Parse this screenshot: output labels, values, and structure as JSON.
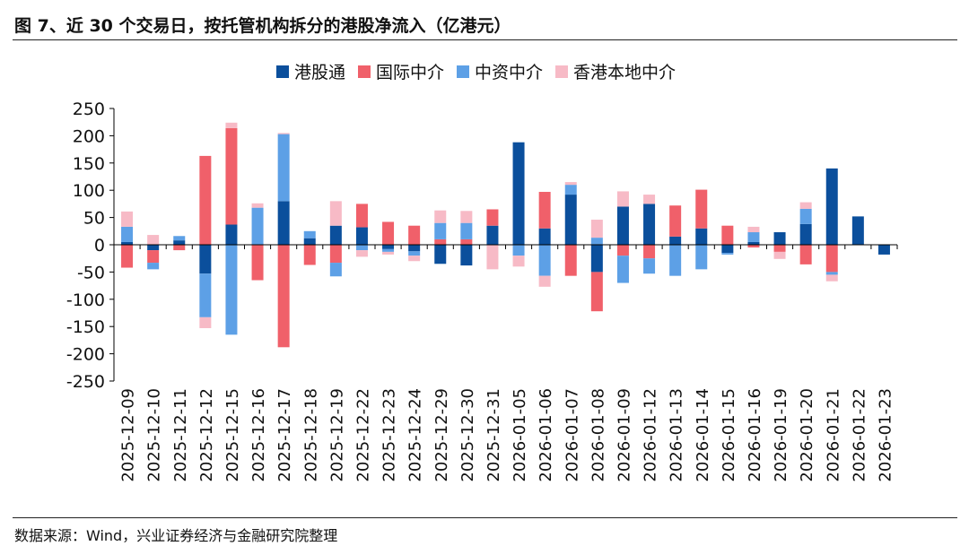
{
  "figure": {
    "title": "图 7、近 30 个交易日，按托管机构拆分的港股净流入（亿港元）",
    "source": "数据来源：Wind，兴业证券经济与金融研究院整理"
  },
  "colors": {
    "hk_connect": "#0B4F9C",
    "intl_broker": "#F0606A",
    "china_broker": "#5DA0E6",
    "hk_local_broker": "#F7BAC6",
    "axis": "#000000",
    "text": "#111111"
  },
  "chart_data": {
    "type": "bar",
    "stacked": true,
    "title": "图 7、近 30 个交易日，按托管机构拆分的港股净流入（亿港元）",
    "xlabel": "",
    "ylabel": "",
    "ylim": [
      -250,
      250
    ],
    "yticks": [
      250,
      200,
      150,
      100,
      50,
      0,
      -50,
      -100,
      -150,
      -200,
      -250
    ],
    "ytick_labels": [
      "250",
      "200",
      "150",
      "100",
      "50",
      "0",
      "-50",
      "-100",
      "-150",
      "-200",
      "-250"
    ],
    "grid": false,
    "legend_position": "top-center",
    "categories": [
      "2025-12-09",
      "2025-12-10",
      "2025-12-11",
      "2025-12-12",
      "2025-12-15",
      "2025-12-16",
      "2025-12-17",
      "2025-12-18",
      "2025-12-19",
      "2025-12-22",
      "2025-12-23",
      "2025-12-24",
      "2025-12-29",
      "2025-12-30",
      "2025-12-31",
      "2026-01-05",
      "2026-01-06",
      "2026-01-07",
      "2026-01-08",
      "2026-01-09",
      "2026-01-12",
      "2026-01-13",
      "2026-01-14",
      "2026-01-15",
      "2026-01-16",
      "2026-01-19",
      "2026-01-20",
      "2026-01-21",
      "2026-01-22",
      "2026-01-23"
    ],
    "series": [
      {
        "name": "港股通",
        "color_key": "hk_connect",
        "values": [
          5,
          -10,
          8,
          -53,
          37,
          0,
          80,
          12,
          35,
          32,
          -8,
          -12,
          -35,
          -38,
          35,
          188,
          30,
          92,
          -50,
          70,
          75,
          15,
          30,
          -15,
          5,
          23,
          38,
          140,
          52,
          -18
        ]
      },
      {
        "name": "国际中介",
        "color_key": "intl_broker",
        "values": [
          -42,
          -23,
          -10,
          163,
          177,
          -65,
          -188,
          -37,
          -33,
          43,
          42,
          35,
          10,
          10,
          30,
          0,
          67,
          -57,
          -72,
          -20,
          -25,
          57,
          71,
          35,
          -5,
          -13,
          -36,
          -50,
          0,
          0
        ]
      },
      {
        "name": "中资中介",
        "color_key": "china_broker",
        "values": [
          28,
          -12,
          8,
          -80,
          -165,
          68,
          123,
          13,
          -25,
          -10,
          -5,
          -8,
          30,
          30,
          0,
          -20,
          -57,
          18,
          13,
          -50,
          -28,
          -57,
          -45,
          -3,
          18,
          0,
          28,
          -5,
          0,
          0
        ]
      },
      {
        "name": "香港本地中介",
        "color_key": "hk_local_broker",
        "values": [
          28,
          18,
          0,
          -20,
          10,
          8,
          2,
          0,
          45,
          -12,
          -5,
          -10,
          23,
          22,
          -45,
          -20,
          -20,
          5,
          33,
          28,
          17,
          0,
          0,
          0,
          10,
          -13,
          12,
          -12,
          0,
          0
        ]
      }
    ]
  }
}
